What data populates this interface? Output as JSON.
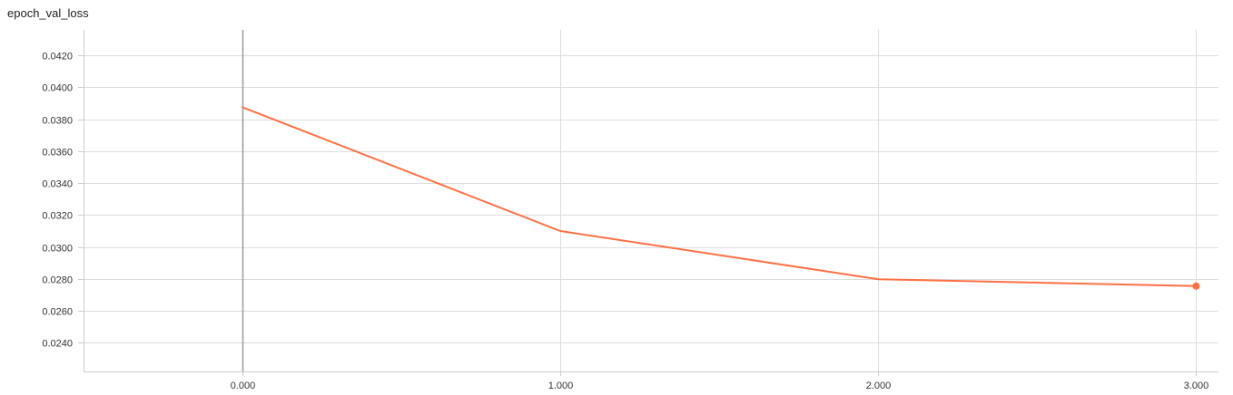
{
  "chart_data": {
    "type": "line",
    "title": "epoch_val_loss",
    "xlabel": "",
    "ylabel": "",
    "x": [
      0,
      1,
      2,
      3
    ],
    "series": [
      {
        "values": [
          0.03875,
          0.031,
          0.02798,
          0.02755
        ],
        "color": "#ff7043"
      }
    ],
    "xlim": [
      -0.5,
      3.07
    ],
    "ylim": [
      0.0222,
      0.0436
    ],
    "xticks": [
      {
        "value": 0,
        "label": "0.000"
      },
      {
        "value": 1,
        "label": "1.000"
      },
      {
        "value": 2,
        "label": "2.000"
      },
      {
        "value": 3,
        "label": "3.000"
      }
    ],
    "yticks": [
      {
        "value": 0.024,
        "label": "0.0240"
      },
      {
        "value": 0.026,
        "label": "0.0260"
      },
      {
        "value": 0.028,
        "label": "0.0280"
      },
      {
        "value": 0.03,
        "label": "0.0300"
      },
      {
        "value": 0.032,
        "label": "0.0320"
      },
      {
        "value": 0.034,
        "label": "0.0340"
      },
      {
        "value": 0.036,
        "label": "0.0360"
      },
      {
        "value": 0.038,
        "label": "0.0380"
      },
      {
        "value": 0.04,
        "label": "0.0400"
      },
      {
        "value": 0.042,
        "label": "0.0420"
      }
    ],
    "grid": true,
    "last_point_marker": true,
    "colors": {
      "grid": "#dddddd",
      "axis": "#cccccc",
      "zero_line": "#999999"
    }
  }
}
